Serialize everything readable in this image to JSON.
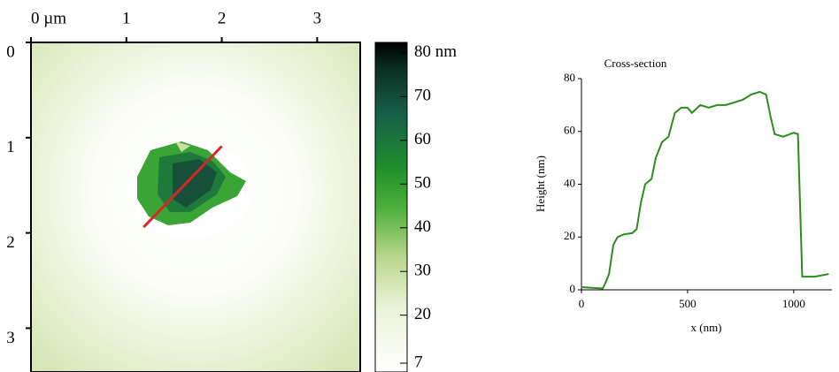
{
  "chart_data": [
    {
      "type": "image",
      "xlim": [
        0,
        3.45
      ],
      "ylim": [
        0,
        3.45
      ],
      "xticks": [
        {
          "value": 0,
          "label": "0 µm"
        },
        1,
        2,
        3
      ],
      "yticks": [
        0,
        1,
        2,
        3
      ],
      "profile_line": {
        "x": [
          1.18,
          2.0
        ],
        "y": [
          1.94,
          1.09
        ],
        "color": "#d62728"
      },
      "colorbar": {
        "clim": [
          7,
          82.4
        ],
        "ticks": [
          {
            "value": 80,
            "label": "80 nm"
          },
          70,
          60,
          50,
          40,
          30,
          20,
          7
        ]
      }
    },
    {
      "type": "line",
      "title": "Cross-section",
      "xlabel": "x (nm)",
      "ylabel": "Height (nm)",
      "xlim": [
        0,
        1180
      ],
      "ylim": [
        0,
        80
      ],
      "xticks": [
        0,
        500,
        1000
      ],
      "yticks": [
        0,
        20,
        40,
        60,
        80
      ],
      "series": [
        {
          "color": "#2e8b1e",
          "x": [
            0,
            100,
            115,
            130,
            150,
            170,
            200,
            240,
            260,
            280,
            300,
            330,
            350,
            380,
            410,
            440,
            470,
            500,
            520,
            560,
            600,
            640,
            680,
            720,
            760,
            800,
            840,
            870,
            890,
            910,
            950,
            1000,
            1020,
            1040,
            1100,
            1165
          ],
          "values": [
            1,
            0.5,
            3,
            6,
            17,
            20,
            21,
            21.5,
            23,
            33,
            40,
            42,
            50,
            56,
            58,
            67,
            69,
            69,
            67,
            70,
            69,
            70,
            70,
            71,
            72,
            74,
            75,
            74,
            66,
            59,
            58,
            59.5,
            59,
            5,
            5,
            6
          ]
        }
      ]
    }
  ]
}
